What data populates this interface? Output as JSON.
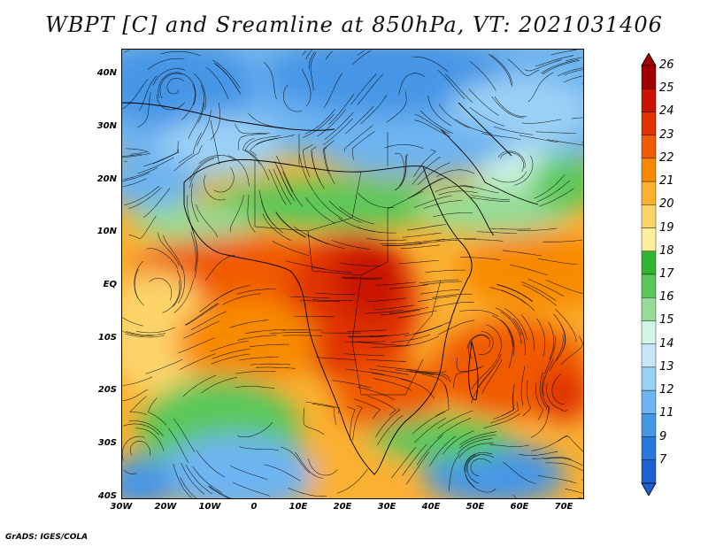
{
  "title": "WBPT [C] and Sreamline at 850hPa, VT: 2021031406",
  "credit": "GrADS: IGES/COLA",
  "map": {
    "lat_labels": [
      "40N",
      "30N",
      "20N",
      "10N",
      "EQ",
      "10S",
      "20S",
      "30S",
      "40S"
    ],
    "lon_labels": [
      "30W",
      "20W",
      "10W",
      "0",
      "10E",
      "20E",
      "30E",
      "40E",
      "50E",
      "60E",
      "70E"
    ],
    "lon_range": [
      -30,
      75
    ],
    "lat_range": [
      -40,
      45
    ]
  },
  "colorbar": {
    "labels": [
      "26",
      "25",
      "24",
      "23",
      "22",
      "21",
      "20",
      "19",
      "18",
      "17",
      "16",
      "15",
      "14",
      "13",
      "12",
      "11",
      "9",
      "7"
    ],
    "colors": [
      "#a00000",
      "#c81400",
      "#e03200",
      "#f05a00",
      "#f88a00",
      "#fab030",
      "#fcd46a",
      "#fcef9a",
      "#32b432",
      "#5ac85a",
      "#96dc96",
      "#d2f5e6",
      "#c8e6fa",
      "#9bd0f5",
      "#6eb4f0",
      "#4696e6",
      "#2878dc",
      "#1e5fd2"
    ]
  }
}
